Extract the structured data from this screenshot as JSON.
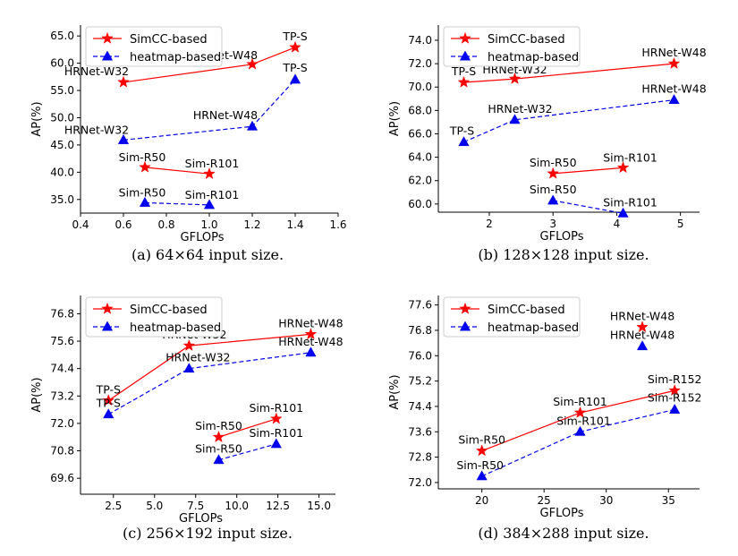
{
  "colors": {
    "simcc": "#ff0000",
    "heatmap": "#0000ee",
    "legend_border": "#cccccc"
  },
  "chart_data": [
    {
      "type": "line",
      "caption": "(a) 64×64 input size.",
      "xlabel": "GFLOPs",
      "ylabel": "AP(%)",
      "xlim": [
        0.4,
        1.6
      ],
      "ylim": [
        32.5,
        67.0
      ],
      "xticks": [
        0.4,
        0.6,
        0.8,
        1.0,
        1.2,
        1.4,
        1.6
      ],
      "xtick_labels": [
        "0.4",
        "0.6",
        "0.8",
        "1.0",
        "1.2",
        "1.4",
        "1.6"
      ],
      "yticks": [
        35,
        40,
        45,
        50,
        55,
        60,
        65
      ],
      "ytick_labels": [
        "35.0",
        "40.0",
        "45.0",
        "50.0",
        "55.0",
        "60.0",
        "65.0"
      ],
      "legend": "top-left",
      "series": [
        {
          "name": "SimCC-based",
          "groups": [
            {
              "points": [
                {
                  "x": 0.6,
                  "y": 56.5,
                  "label": "HRNet-W32"
                },
                {
                  "x": 1.2,
                  "y": 59.8,
                  "label": "HRNet-W48"
                },
                {
                  "x": 1.4,
                  "y": 62.9,
                  "label": "TP-S"
                }
              ]
            },
            {
              "points": [
                {
                  "x": 0.7,
                  "y": 40.9,
                  "label": "Sim-R50"
                },
                {
                  "x": 1.0,
                  "y": 39.7,
                  "label": "Sim-R101"
                }
              ]
            }
          ]
        },
        {
          "name": "heatmap-based",
          "groups": [
            {
              "points": [
                {
                  "x": 0.6,
                  "y": 45.9,
                  "label": "HRNet-W32"
                },
                {
                  "x": 1.2,
                  "y": 48.4,
                  "label": "HRNet-W48"
                },
                {
                  "x": 1.4,
                  "y": 57.0,
                  "label": "TP-S"
                }
              ]
            },
            {
              "points": [
                {
                  "x": 0.7,
                  "y": 34.4,
                  "label": "Sim-R50"
                },
                {
                  "x": 1.0,
                  "y": 34.0,
                  "label": "Sim-R101"
                }
              ]
            }
          ]
        }
      ]
    },
    {
      "type": "line",
      "caption": "(b) 128×128 input size.",
      "xlabel": "GFLOPs",
      "ylabel": "AP(%)",
      "xlim": [
        1.2,
        5.3
      ],
      "ylim": [
        59.3,
        75.3
      ],
      "xticks": [
        2,
        3,
        4,
        5
      ],
      "xtick_labels": [
        "2",
        "3",
        "4",
        "5"
      ],
      "yticks": [
        60,
        62,
        64,
        66,
        68,
        70,
        72,
        74
      ],
      "ytick_labels": [
        "60.0",
        "62.0",
        "64.0",
        "66.0",
        "68.0",
        "70.0",
        "72.0",
        "74.0"
      ],
      "legend": "top-left",
      "series": [
        {
          "name": "SimCC-based",
          "groups": [
            {
              "points": [
                {
                  "x": 1.6,
                  "y": 70.4,
                  "label": "TP-S"
                },
                {
                  "x": 2.4,
                  "y": 70.7,
                  "label": "HRNet-W32"
                },
                {
                  "x": 4.9,
                  "y": 72.0,
                  "label": "HRNet-W48"
                }
              ]
            },
            {
              "points": [
                {
                  "x": 3.0,
                  "y": 62.6,
                  "label": "Sim-R50"
                },
                {
                  "x": 4.1,
                  "y": 63.1,
                  "label": "Sim-R101"
                }
              ]
            }
          ]
        },
        {
          "name": "heatmap-based",
          "groups": [
            {
              "points": [
                {
                  "x": 1.6,
                  "y": 65.3,
                  "label": "TP-S"
                },
                {
                  "x": 2.4,
                  "y": 67.2,
                  "label": "HRNet-W32"
                },
                {
                  "x": 4.9,
                  "y": 68.9,
                  "label": "HRNet-W48"
                }
              ]
            },
            {
              "points": [
                {
                  "x": 3.0,
                  "y": 60.3,
                  "label": "Sim-R50"
                },
                {
                  "x": 4.1,
                  "y": 59.2,
                  "label": "Sim-R101"
                }
              ]
            }
          ]
        }
      ]
    },
    {
      "type": "line",
      "caption": "(c) 256×192 input size.",
      "xlabel": "GFLOPs",
      "ylabel": "AP(%)",
      "xlim": [
        0.5,
        16.0
      ],
      "ylim": [
        68.9,
        77.6
      ],
      "xticks": [
        2.5,
        5.0,
        7.5,
        10.0,
        12.5,
        15.0
      ],
      "xtick_labels": [
        "2.5",
        "5.0",
        "7.5",
        "10.0",
        "12.5",
        "15.0"
      ],
      "yticks": [
        69.6,
        70.8,
        72.0,
        73.2,
        74.4,
        75.6,
        76.8
      ],
      "ytick_labels": [
        "69.6",
        "70.8",
        "72.0",
        "73.2",
        "74.4",
        "75.6",
        "76.8"
      ],
      "legend": "top-left",
      "series": [
        {
          "name": "SimCC-based",
          "groups": [
            {
              "points": [
                {
                  "x": 2.2,
                  "y": 73.0,
                  "label": "TP-S"
                },
                {
                  "x": 7.1,
                  "y": 75.4,
                  "label": "HRNet-W32"
                },
                {
                  "x": 14.5,
                  "y": 75.9,
                  "label": "HRNet-W48"
                }
              ]
            },
            {
              "points": [
                {
                  "x": 8.9,
                  "y": 71.4,
                  "label": "Sim-R50"
                },
                {
                  "x": 12.4,
                  "y": 72.2,
                  "label": "Sim-R101"
                }
              ]
            }
          ]
        },
        {
          "name": "heatmap-based",
          "groups": [
            {
              "points": [
                {
                  "x": 2.2,
                  "y": 72.4,
                  "label": "TP-S"
                },
                {
                  "x": 7.1,
                  "y": 74.4,
                  "label": "HRNet-W32"
                },
                {
                  "x": 14.5,
                  "y": 75.1,
                  "label": "HRNet-W48"
                }
              ]
            },
            {
              "points": [
                {
                  "x": 8.9,
                  "y": 70.4,
                  "label": "Sim-R50"
                },
                {
                  "x": 12.4,
                  "y": 71.1,
                  "label": "Sim-R101"
                }
              ]
            }
          ]
        }
      ]
    },
    {
      "type": "line",
      "caption": "(d) 384×288 input size.",
      "xlabel": "GFLOPs",
      "ylabel": "AP(%)",
      "xlim": [
        16.5,
        37.5
      ],
      "ylim": [
        71.8,
        77.9
      ],
      "xticks": [
        20,
        25,
        30,
        35
      ],
      "xtick_labels": [
        "20",
        "25",
        "30",
        "35"
      ],
      "yticks": [
        72.0,
        72.8,
        73.6,
        74.4,
        75.2,
        76.0,
        76.8,
        77.6
      ],
      "ytick_labels": [
        "72.0",
        "72.8",
        "73.6",
        "74.4",
        "75.2",
        "76.0",
        "76.8",
        "77.6"
      ],
      "legend": "top-left",
      "series": [
        {
          "name": "SimCC-based",
          "groups": [
            {
              "points": [
                {
                  "x": 20.0,
                  "y": 73.0,
                  "label": "Sim-R50"
                },
                {
                  "x": 27.9,
                  "y": 74.2,
                  "label": "Sim-R101"
                },
                {
                  "x": 35.5,
                  "y": 74.9,
                  "label": "Sim-R152"
                }
              ]
            },
            {
              "points": [
                {
                  "x": 32.9,
                  "y": 76.9,
                  "label": "HRNet-W48"
                }
              ]
            }
          ]
        },
        {
          "name": "heatmap-based",
          "groups": [
            {
              "points": [
                {
                  "x": 20.0,
                  "y": 72.2,
                  "label": "Sim-R50"
                },
                {
                  "x": 27.9,
                  "y": 73.6,
                  "label": "Sim-R101"
                },
                {
                  "x": 35.5,
                  "y": 74.3,
                  "label": "Sim-R152"
                }
              ]
            },
            {
              "points": [
                {
                  "x": 32.9,
                  "y": 76.3,
                  "label": "HRNet-W48"
                }
              ]
            }
          ]
        }
      ]
    }
  ]
}
